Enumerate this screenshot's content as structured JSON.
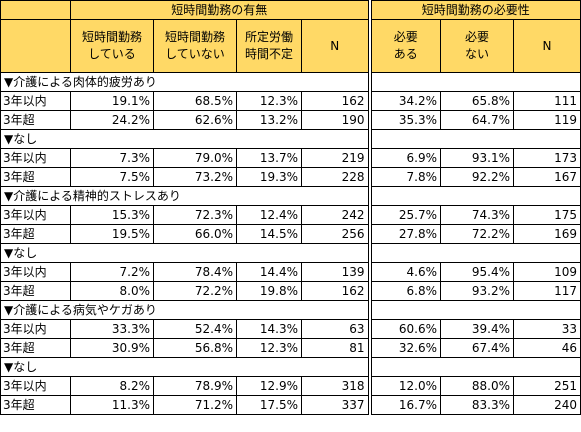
{
  "header": {
    "group1_title": "短時間勤務の有無",
    "group2_title": "短時間勤務の必要性",
    "columns": [
      [
        "短時間勤務",
        "している"
      ],
      [
        "短時間勤務",
        "していない"
      ],
      [
        "所定労働",
        "時間不定"
      ],
      [
        "N"
      ],
      [
        "必要",
        "ある"
      ],
      [
        "必要",
        "ない"
      ],
      [
        "N"
      ]
    ]
  },
  "sections": [
    {
      "title": "▼介護による肉体的疲労あり",
      "rows": [
        {
          "label": "3年以内",
          "values": [
            "19.1%",
            "68.5%",
            "12.3%",
            "162",
            "34.2%",
            "65.8%",
            "111"
          ]
        },
        {
          "label": "3年超",
          "values": [
            "24.2%",
            "62.6%",
            "13.2%",
            "190",
            "35.3%",
            "64.7%",
            "119"
          ]
        }
      ]
    },
    {
      "title": "▼なし",
      "rows": [
        {
          "label": "3年以内",
          "values": [
            "7.3%",
            "79.0%",
            "13.7%",
            "219",
            "6.9%",
            "93.1%",
            "173"
          ]
        },
        {
          "label": "3年超",
          "values": [
            "7.5%",
            "73.2%",
            "19.3%",
            "228",
            "7.8%",
            "92.2%",
            "167"
          ]
        }
      ]
    },
    {
      "title": "▼介護による精神的ストレスあり",
      "rows": [
        {
          "label": "3年以内",
          "values": [
            "15.3%",
            "72.3%",
            "12.4%",
            "242",
            "25.7%",
            "74.3%",
            "175"
          ]
        },
        {
          "label": "3年超",
          "values": [
            "19.5%",
            "66.0%",
            "14.5%",
            "256",
            "27.8%",
            "72.2%",
            "169"
          ]
        }
      ]
    },
    {
      "title": "▼なし",
      "rows": [
        {
          "label": "3年以内",
          "values": [
            "7.2%",
            "78.4%",
            "14.4%",
            "139",
            "4.6%",
            "95.4%",
            "109"
          ]
        },
        {
          "label": "3年超",
          "values": [
            "8.0%",
            "72.2%",
            "19.8%",
            "162",
            "6.8%",
            "93.2%",
            "117"
          ]
        }
      ]
    },
    {
      "title": "▼介護による病気やケガあり",
      "rows": [
        {
          "label": "3年以内",
          "values": [
            "33.3%",
            "52.4%",
            "14.3%",
            "63",
            "60.6%",
            "39.4%",
            "33"
          ]
        },
        {
          "label": "3年超",
          "values": [
            "30.9%",
            "56.8%",
            "12.3%",
            "81",
            "32.6%",
            "67.4%",
            "46"
          ]
        }
      ]
    },
    {
      "title": "▼なし",
      "rows": [
        {
          "label": "3年以内",
          "values": [
            "8.2%",
            "78.9%",
            "12.9%",
            "318",
            "12.0%",
            "88.0%",
            "251"
          ]
        },
        {
          "label": "3年超",
          "values": [
            "11.3%",
            "71.2%",
            "17.5%",
            "337",
            "16.7%",
            "83.3%",
            "240"
          ]
        }
      ]
    }
  ]
}
